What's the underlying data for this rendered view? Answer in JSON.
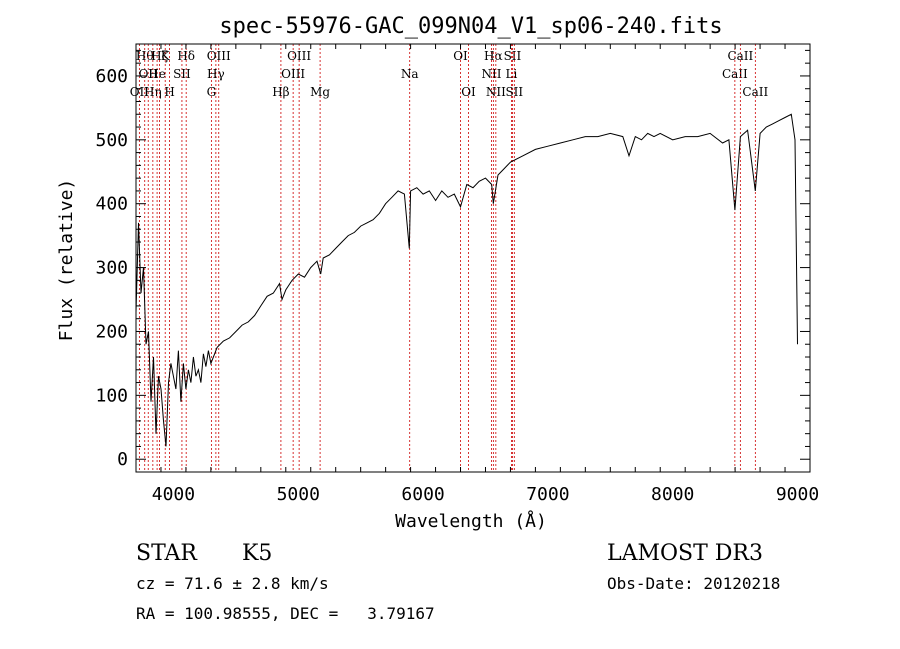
{
  "chart_data": {
    "type": "line",
    "title": "spec-55976-GAC_099N04_V1_sp06-240.fits",
    "xlabel": "Wavelength (Å)",
    "ylabel": "Flux (relative)",
    "xlim": [
      3700,
      9100
    ],
    "ylim": [
      -20,
      650
    ],
    "xticks": [
      4000,
      5000,
      6000,
      7000,
      8000,
      9000
    ],
    "yticks": [
      0,
      100,
      200,
      300,
      400,
      500,
      600
    ],
    "grid": false,
    "line_color": "#000000",
    "marker_color": "#cc0000",
    "series": [
      {
        "x": [
          3700,
          3720,
          3740,
          3760,
          3780,
          3800,
          3820,
          3840,
          3860,
          3880,
          3900,
          3920,
          3940,
          3960,
          3980,
          4000,
          4020,
          4040,
          4060,
          4080,
          4100,
          4120,
          4140,
          4160,
          4180,
          4200,
          4220,
          4240,
          4260,
          4280,
          4300,
          4350,
          4400,
          4450,
          4500,
          4550,
          4600,
          4650,
          4700,
          4750,
          4800,
          4850,
          4870,
          4900,
          4950,
          5000,
          5050,
          5100,
          5150,
          5180,
          5200,
          5250,
          5300,
          5350,
          5400,
          5450,
          5500,
          5550,
          5600,
          5650,
          5700,
          5750,
          5800,
          5850,
          5890,
          5900,
          5950,
          6000,
          6050,
          6100,
          6150,
          6200,
          6250,
          6300,
          6350,
          6400,
          6450,
          6500,
          6550,
          6563,
          6600,
          6650,
          6700,
          6800,
          6900,
          7000,
          7100,
          7200,
          7300,
          7400,
          7500,
          7600,
          7650,
          7700,
          7750,
          7800,
          7850,
          7900,
          8000,
          8100,
          8200,
          8300,
          8400,
          8450,
          8498,
          8542,
          8600,
          8662,
          8700,
          8750,
          8800,
          8850,
          8900,
          8950,
          8980,
          9000
        ],
        "y": [
          230,
          370,
          260,
          300,
          180,
          200,
          90,
          160,
          40,
          130,
          110,
          60,
          20,
          120,
          150,
          130,
          110,
          170,
          90,
          150,
          110,
          140,
          120,
          160,
          130,
          140,
          120,
          165,
          145,
          170,
          150,
          175,
          185,
          190,
          200,
          210,
          215,
          225,
          240,
          255,
          260,
          275,
          250,
          265,
          280,
          290,
          285,
          300,
          310,
          290,
          315,
          320,
          330,
          340,
          350,
          355,
          365,
          370,
          375,
          385,
          400,
          410,
          420,
          415,
          330,
          420,
          425,
          415,
          420,
          405,
          420,
          410,
          415,
          395,
          430,
          425,
          435,
          440,
          430,
          400,
          445,
          455,
          465,
          475,
          485,
          490,
          495,
          500,
          505,
          505,
          510,
          505,
          475,
          505,
          500,
          510,
          505,
          510,
          500,
          505,
          505,
          510,
          495,
          500,
          390,
          505,
          515,
          420,
          510,
          520,
          525,
          530,
          535,
          540,
          500,
          180
        ]
      }
    ],
    "lines": [
      {
        "wl": 3727,
        "label": "OII",
        "row": 2
      },
      {
        "wl": 3770,
        "label": "Hθ",
        "row": 0
      },
      {
        "wl": 3798,
        "label": "OII",
        "row": 1
      },
      {
        "wl": 3835,
        "label": "Hη",
        "row": 2
      },
      {
        "wl": 3869,
        "label": "He",
        "row": 1
      },
      {
        "wl": 3889,
        "label": "Hζ",
        "row": 0
      },
      {
        "wl": 3934,
        "label": "K",
        "row": 0
      },
      {
        "wl": 3969,
        "label": "H",
        "row": 2
      },
      {
        "wl": 4068,
        "label": "SII",
        "row": 1
      },
      {
        "wl": 4102,
        "label": "Hδ",
        "row": 0
      },
      {
        "wl": 4304,
        "label": "G",
        "row": 2
      },
      {
        "wl": 4340,
        "label": "Hγ",
        "row": 1
      },
      {
        "wl": 4363,
        "label": "OIII",
        "row": 0
      },
      {
        "wl": 4861,
        "label": "Hβ",
        "row": 2
      },
      {
        "wl": 4959,
        "label": "OIII",
        "row": 1
      },
      {
        "wl": 5007,
        "label": "OIII",
        "row": 0
      },
      {
        "wl": 5175,
        "label": "Mg",
        "row": 2
      },
      {
        "wl": 5893,
        "label": "Na",
        "row": 1
      },
      {
        "wl": 6300,
        "label": "OI",
        "row": 0
      },
      {
        "wl": 6364,
        "label": "OI",
        "row": 2
      },
      {
        "wl": 6548,
        "label": "NII",
        "row": 1
      },
      {
        "wl": 6563,
        "label": "Hα",
        "row": 0
      },
      {
        "wl": 6583,
        "label": "NII",
        "row": 2
      },
      {
        "wl": 6708,
        "label": "Li",
        "row": 1
      },
      {
        "wl": 6716,
        "label": "SII",
        "row": 0
      },
      {
        "wl": 6731,
        "label": "SII",
        "row": 2
      },
      {
        "wl": 8498,
        "label": "CaII",
        "row": 1
      },
      {
        "wl": 8542,
        "label": "CaII",
        "row": 0
      },
      {
        "wl": 8662,
        "label": "CaII",
        "row": 2
      }
    ]
  },
  "info": {
    "class": "STAR",
    "subclass": "K5",
    "survey": "LAMOST DR3",
    "cz": "cz = 71.6 ± 2.8 km/s",
    "obs_date": "Obs-Date: 20120218",
    "coords": "RA = 100.98555, DEC =   3.79167"
  }
}
